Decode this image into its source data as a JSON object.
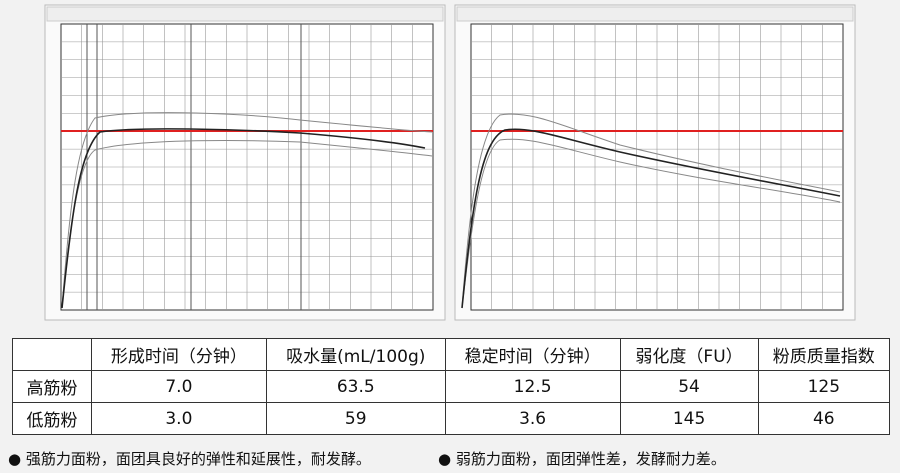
{
  "table": {
    "header": [
      "形成时间（分钟）",
      "吸水量(mL/100g)",
      "稳定时间（分钟）",
      "弱化度（FU）",
      "粉质质量指数"
    ],
    "rows": [
      [
        "高筋粉",
        "7.0",
        "63.5",
        "12.5",
        "54",
        "125"
      ],
      [
        "低筋粉",
        "3.0",
        "59",
        "3.6",
        "145",
        "46"
      ]
    ]
  },
  "notes": [
    "● 强筋力面粉，面团具良好的弹性和延展性，耐发酵。",
    "● 弱筋力面粉，面团弹性差，发酵耐力差。"
  ]
}
